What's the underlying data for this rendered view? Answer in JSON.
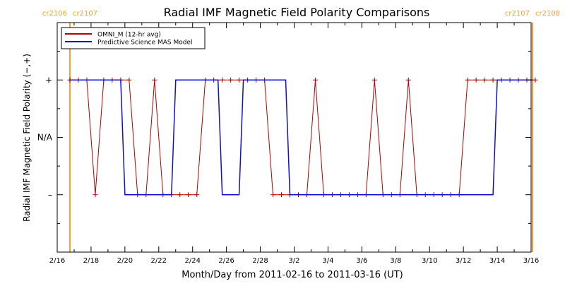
{
  "chart_data": {
    "type": "line",
    "title": "Radial IMF Magnetic Field Polarity Comparisons",
    "xlabel": "Month/Day from 2011-02-16 to 2011-03-16 (UT)",
    "ylabel": "Radial IMF Magnetic Field Polarity (−,+)",
    "xlim": [
      "2011-02-16",
      "2011-03-16"
    ],
    "ylim": [
      -2,
      2
    ],
    "x_ticks": [
      "2/16",
      "2/18",
      "2/20",
      "2/22",
      "2/24",
      "2/26",
      "2/28",
      "3/2",
      "3/4",
      "3/6",
      "3/8",
      "3/10",
      "3/12",
      "3/14",
      "3/16"
    ],
    "y_ticks": [
      {
        "value": 1,
        "label": "+"
      },
      {
        "value": 0,
        "label": "N/A"
      },
      {
        "value": -1,
        "label": "–"
      }
    ],
    "legend_position": "top-left",
    "grid": false,
    "colors": {
      "omni": "#b00000",
      "mas": "#1010c8",
      "markers": "#f0a030"
    },
    "carrington_markers": [
      {
        "date": "2011-02-16 18:00",
        "left_label": "cr2106",
        "right_label": "cr2107"
      },
      {
        "date": "2011-03-16 02:00",
        "left_label": "cr2107",
        "right_label": "cr2108"
      }
    ],
    "series": [
      {
        "name": "OMNI_M (12-hr avg)",
        "marker": "plus",
        "x": [
          "2011-02-16 18:00",
          "2011-02-17 06:00",
          "2011-02-17 18:00",
          "2011-02-18 06:00",
          "2011-02-18 18:00",
          "2011-02-19 06:00",
          "2011-02-19 18:00",
          "2011-02-20 06:00",
          "2011-02-20 18:00",
          "2011-02-21 06:00",
          "2011-02-21 18:00",
          "2011-02-22 06:00",
          "2011-02-22 18:00",
          "2011-02-23 06:00",
          "2011-02-23 18:00",
          "2011-02-24 06:00",
          "2011-02-24 18:00",
          "2011-02-25 06:00",
          "2011-02-25 18:00",
          "2011-02-26 06:00",
          "2011-02-26 18:00",
          "2011-02-27 06:00",
          "2011-02-27 18:00",
          "2011-02-28 06:00",
          "2011-02-28 18:00",
          "2011-03-01 06:00",
          "2011-03-01 18:00",
          "2011-03-02 06:00",
          "2011-03-02 18:00",
          "2011-03-03 06:00",
          "2011-03-03 18:00",
          "2011-03-04 06:00",
          "2011-03-04 18:00",
          "2011-03-05 06:00",
          "2011-03-05 18:00",
          "2011-03-06 06:00",
          "2011-03-06 18:00",
          "2011-03-07 06:00",
          "2011-03-07 18:00",
          "2011-03-08 06:00",
          "2011-03-08 18:00",
          "2011-03-09 06:00",
          "2011-03-09 18:00",
          "2011-03-10 06:00",
          "2011-03-10 18:00",
          "2011-03-11 06:00",
          "2011-03-11 18:00",
          "2011-03-12 06:00",
          "2011-03-12 18:00",
          "2011-03-13 06:00",
          "2011-03-13 18:00",
          "2011-03-14 06:00",
          "2011-03-14 18:00",
          "2011-03-15 06:00",
          "2011-03-15 18:00",
          "2011-03-16 06:00"
        ],
        "y": [
          1,
          1,
          1,
          -1,
          1,
          1,
          1,
          1,
          -1,
          -1,
          1,
          -1,
          -1,
          -1,
          -1,
          -1,
          1,
          1,
          1,
          1,
          1,
          1,
          1,
          1,
          -1,
          -1,
          -1,
          -1,
          -1,
          1,
          -1,
          -1,
          -1,
          -1,
          -1,
          -1,
          1,
          -1,
          -1,
          -1,
          1,
          -1,
          -1,
          -1,
          -1,
          -1,
          -1,
          1,
          1,
          1,
          1,
          1,
          1,
          1,
          1,
          1
        ]
      },
      {
        "name": "Predictive Science MAS Model",
        "marker": "none",
        "x": [
          "2011-02-16 18:00",
          "2011-02-19 18:00",
          "2011-02-20 00:00",
          "2011-02-22 18:00",
          "2011-02-23 00:00",
          "2011-02-25 12:00",
          "2011-02-25 18:00",
          "2011-02-26 18:00",
          "2011-02-27 00:00",
          "2011-03-01 12:00",
          "2011-03-01 18:00",
          "2011-03-13 18:00",
          "2011-03-14 00:00",
          "2011-03-16 02:00"
        ],
        "y": [
          1,
          1,
          -1,
          -1,
          1,
          1,
          -1,
          -1,
          1,
          1,
          -1,
          -1,
          1,
          1
        ]
      }
    ]
  }
}
